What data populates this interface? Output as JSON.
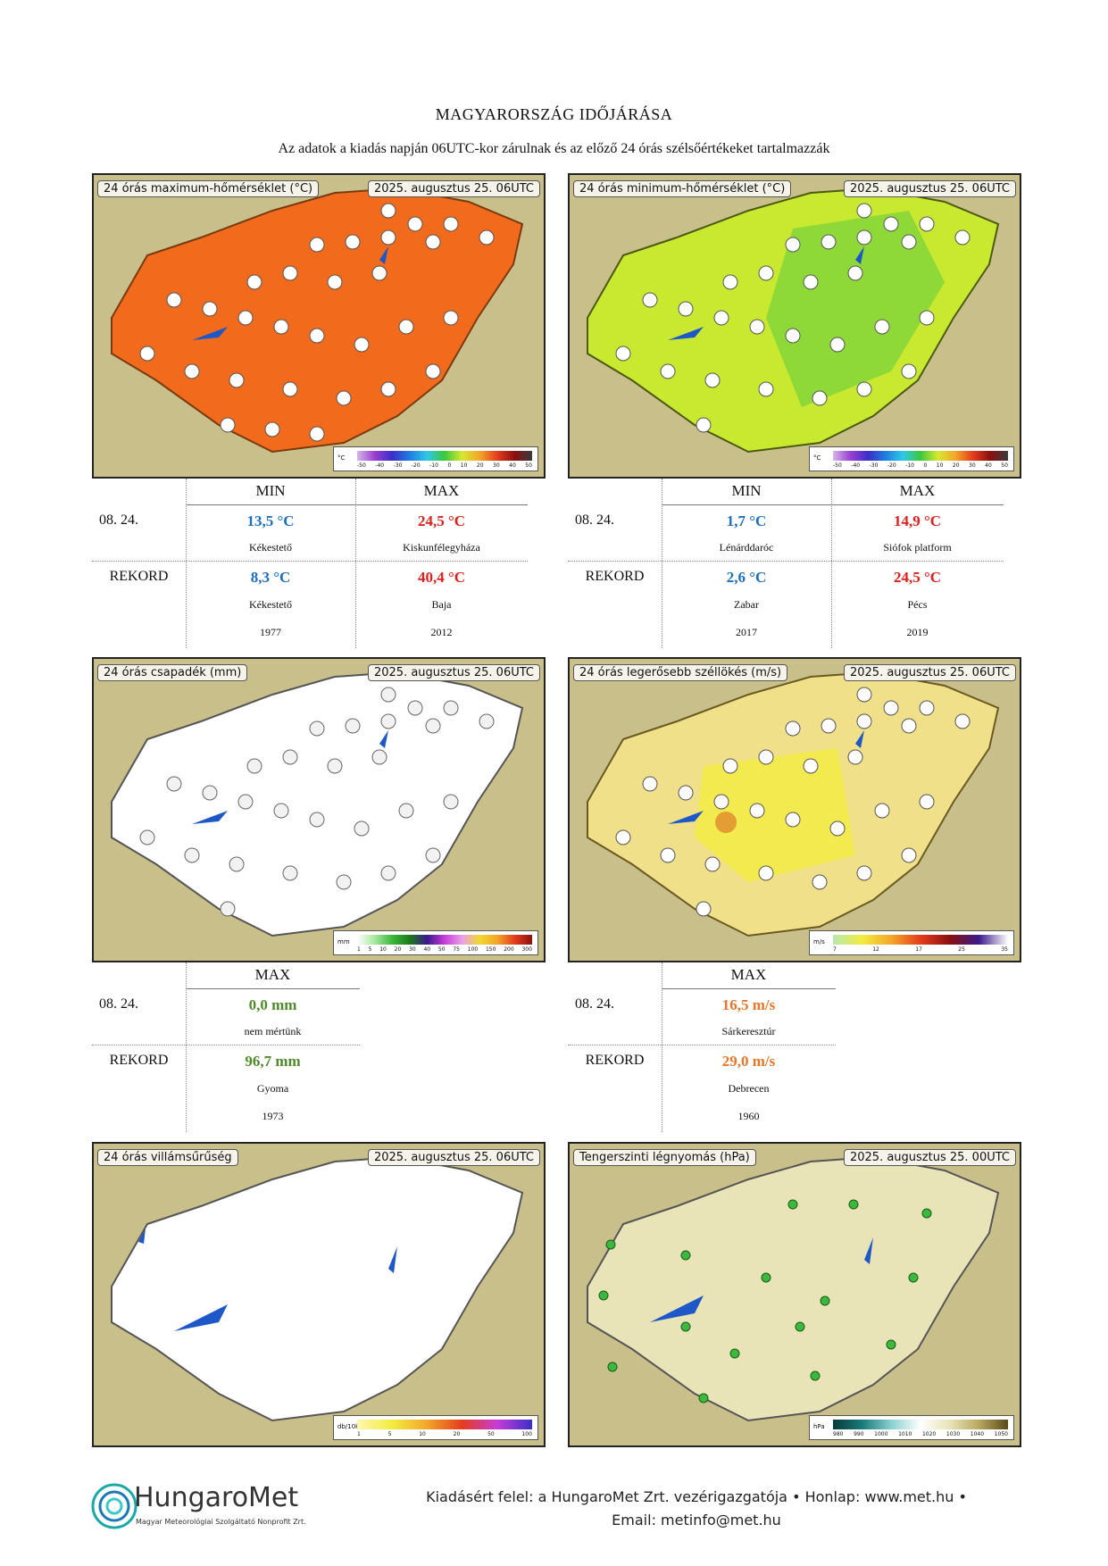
{
  "header": {
    "title": "MAGYARORSZÁG IDŐJÁRÁSA",
    "subtitle": "Az adatok a kiadás napján 06UTC-kor zárulnak és az előző 24 órás szélsőértékeket tartalmazzák"
  },
  "maps": {
    "tmax": {
      "label": "24 órás maximum-hőmérséklet (°C)",
      "date": "2025. augusztus 25. 06UTC",
      "legend_unit": "°C",
      "legend_ticks": [
        "-50",
        "-40",
        "-30",
        "-20",
        "-10",
        "0",
        "10",
        "20",
        "30",
        "40",
        "50"
      ]
    },
    "tmin": {
      "label": "24 órás minimum-hőmérséklet (°C)",
      "date": "2025. augusztus 25. 06UTC",
      "legend_unit": "°C",
      "legend_ticks": [
        "-50",
        "-40",
        "-30",
        "-20",
        "-10",
        "0",
        "10",
        "20",
        "30",
        "40",
        "50"
      ]
    },
    "precip": {
      "label": "24 órás csapadék (mm)",
      "date": "2025. augusztus 25. 06UTC",
      "legend_unit": "mm",
      "legend_ticks": [
        "1",
        "5",
        "10",
        "20",
        "30",
        "40",
        "50",
        "75",
        "100",
        "150",
        "200",
        "300"
      ]
    },
    "gust": {
      "label": "24 órás legerősebb széllökés (m/s)",
      "date": "2025. augusztus 25. 06UTC",
      "legend_unit": "m/s",
      "legend_ticks": [
        "7",
        "12",
        "17",
        "25",
        "35"
      ]
    },
    "lightning": {
      "label": "24 órás villámsűrűség",
      "date": "2025. augusztus 25. 06UTC",
      "legend_unit": "db/10km2",
      "legend_ticks": [
        "1",
        "5",
        "10",
        "20",
        "50",
        "100"
      ]
    },
    "pressure": {
      "label": "Tengerszinti légnyomás (hPa)",
      "date": "2025. augusztus 25. 00UTC",
      "legend_unit": "hPa",
      "legend_ticks": [
        "980",
        "990",
        "1000",
        "1010",
        "1020",
        "1030",
        "1040",
        "1050"
      ]
    }
  },
  "temp_table_left": {
    "col_min": "MIN",
    "col_max": "MAX",
    "day_label": "08. 24.",
    "day_min": "13,5 °C",
    "day_min_place": "Kékestető",
    "day_max": "24,5 °C",
    "day_max_place": "Kiskunfélegyháza",
    "record_label": "REKORD",
    "rec_min": "8,3 °C",
    "rec_min_place": "Kékestető",
    "rec_min_year": "1977",
    "rec_max": "40,4 °C",
    "rec_max_place": "Baja",
    "rec_max_year": "2012"
  },
  "temp_table_right": {
    "col_min": "MIN",
    "col_max": "MAX",
    "day_label": "08. 24.",
    "day_min": "1,7 °C",
    "day_min_place": "Lénárddaróc",
    "day_max": "14,9 °C",
    "day_max_place": "Siófok platform",
    "record_label": "REKORD",
    "rec_min": "2,6 °C",
    "rec_min_place": "Zabar",
    "rec_min_year": "2017",
    "rec_max": "24,5 °C",
    "rec_max_place": "Pécs",
    "rec_max_year": "2019"
  },
  "precip_table": {
    "col_max": "MAX",
    "day_label": "08. 24.",
    "day_max": "0,0 mm",
    "day_max_place": "nem mértünk",
    "record_label": "REKORD",
    "rec_max": "96,7 mm",
    "rec_max_place": "Gyoma",
    "rec_max_year": "1973"
  },
  "gust_table": {
    "col_max": "MAX",
    "day_label": "08. 24.",
    "day_max": "16,5 m/s",
    "day_max_place": "Sárkeresztúr",
    "record_label": "REKORD",
    "rec_max": "29,0 m/s",
    "rec_max_place": "Debrecen",
    "rec_max_year": "1960"
  },
  "footer": {
    "line1": "Kiadásért felel: a HungaroMet Zrt. vezérigazgatója • Honlap: www.met.hu •",
    "line2": "Email: metinfo@met.hu",
    "logo_text": "HungaroMet",
    "logo_sub": "Magyar Meteorológiai Szolgáltató Nonprofit Zrt."
  },
  "colors": {
    "tmax_fill": "#f26a1b",
    "tmin_fill": "#c9e830",
    "gust_fill": "#f1e08a",
    "precip_fill": "#ffffff",
    "lightning_fill": "#ffffff",
    "pressure_fill": "#e8e4b8",
    "min_blue": "#1f6fc0",
    "max_red": "#e0201c",
    "precip_green": "#4f8a2a",
    "gust_orange": "#e8762a"
  }
}
